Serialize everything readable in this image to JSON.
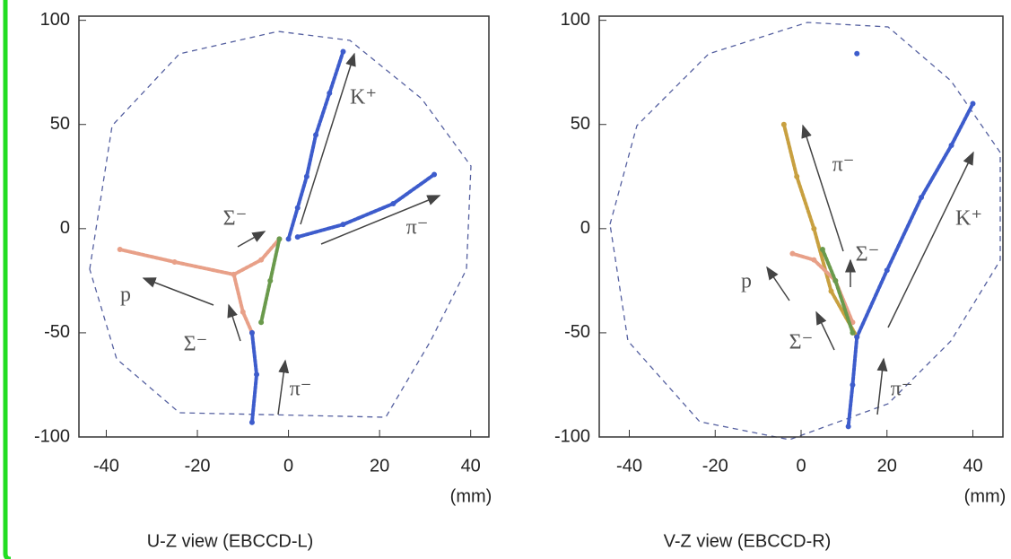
{
  "chart_data": [
    {
      "type": "scatter",
      "title": "U-Z view (EBCCD-L)",
      "x_label": "(mm)",
      "xlim": [
        -46,
        44
      ],
      "ylim": [
        -100,
        102
      ],
      "xticks": [
        -40,
        -20,
        0,
        20,
        40
      ],
      "yticks": [
        -100,
        -50,
        0,
        50,
        100
      ],
      "annotations": [
        "K⁺",
        "π⁻",
        "Σ⁻",
        "p",
        "Σ⁻",
        "π⁻"
      ],
      "series": [
        {
          "color": "#3d5ccc",
          "x": [
            0,
            2,
            4,
            6,
            9,
            12
          ],
          "y": [
            -5,
            10,
            25,
            45,
            65,
            85
          ]
        },
        {
          "color": "#3d5ccc",
          "x": [
            2,
            12,
            23,
            32
          ],
          "y": [
            -4,
            2,
            12,
            26
          ]
        },
        {
          "color": "#e8a088",
          "x": [
            -37,
            -25,
            -12,
            -6,
            -2
          ],
          "y": [
            -10,
            -16,
            -22,
            -15,
            -5
          ]
        },
        {
          "color": "#e8a088",
          "x": [
            -12,
            -10,
            -8
          ],
          "y": [
            -22,
            -40,
            -50
          ]
        },
        {
          "color": "#3d5ccc",
          "x": [
            -8,
            -7,
            -8
          ],
          "y": [
            -50,
            -70,
            -93
          ]
        },
        {
          "color": "#6a9a4c",
          "x": [
            -6,
            -4,
            -2
          ],
          "y": [
            -45,
            -25,
            -5
          ]
        }
      ]
    },
    {
      "type": "scatter",
      "title": "V-Z view (EBCCD-R)",
      "x_label": "(mm)",
      "xlim": [
        -47,
        47
      ],
      "ylim": [
        -100,
        102
      ],
      "xticks": [
        -40,
        -20,
        0,
        20,
        40
      ],
      "yticks": [
        -100,
        -50,
        0,
        50,
        100
      ],
      "annotations": [
        "π⁻",
        "K⁺",
        "Σ⁻",
        "p",
        "Σ⁻",
        "π⁻"
      ],
      "series": [
        {
          "color": "#3d5ccc",
          "x": [
            13,
            20,
            28,
            35,
            40
          ],
          "y": [
            -52,
            -20,
            15,
            40,
            60
          ]
        },
        {
          "color": "#c8a040",
          "x": [
            -4,
            -1,
            3,
            7,
            13
          ],
          "y": [
            50,
            25,
            0,
            -30,
            -52
          ]
        },
        {
          "color": "#e8a088",
          "x": [
            -2,
            3,
            8,
            12
          ],
          "y": [
            -12,
            -15,
            -25,
            -45
          ]
        },
        {
          "color": "#6a9a4c",
          "x": [
            5,
            8,
            12
          ],
          "y": [
            -10,
            -25,
            -50
          ]
        },
        {
          "color": "#3d5ccc",
          "x": [
            13,
            12,
            11
          ],
          "y": [
            -52,
            -75,
            -95
          ]
        },
        {
          "color": "#3d5ccc",
          "x": [
            13
          ],
          "y": [
            84
          ]
        }
      ]
    }
  ]
}
